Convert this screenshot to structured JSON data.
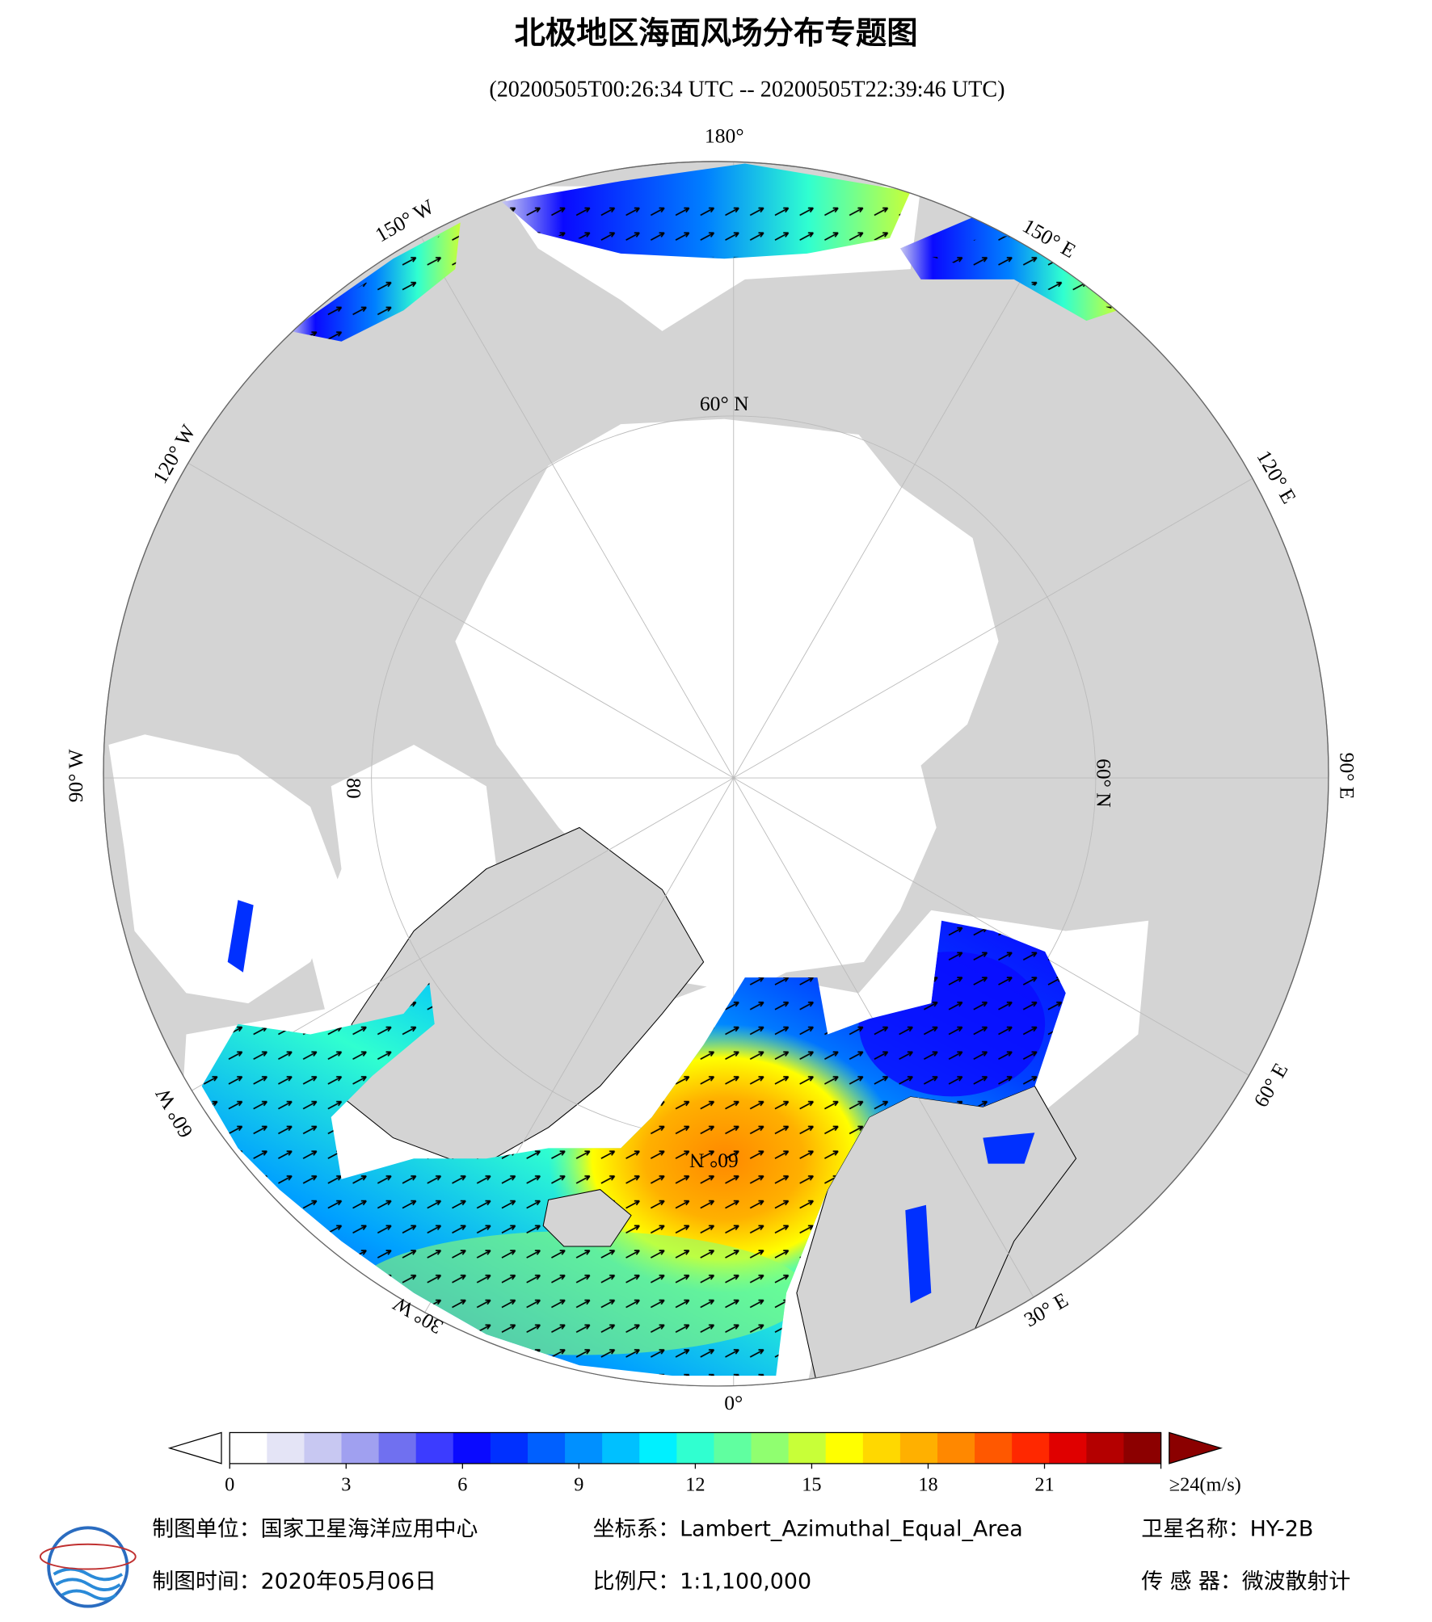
{
  "header": {
    "title": "北极地区海面风场分布专题图",
    "subtitle": "(20200505T00:26:34 UTC -- 20200505T22:39:46 UTC)"
  },
  "map": {
    "meridian_labels": [
      "180°",
      "150° E",
      "120° E",
      "90° E",
      "60° E",
      "30° E",
      "0°",
      "30° W",
      "60° W",
      "90° W",
      "120° W",
      "150° W"
    ],
    "parallel_labels": [
      "60° N",
      "60° N",
      "60° N",
      "80"
    ]
  },
  "colorbar": {
    "range": [
      0,
      24
    ],
    "ticks": [
      0,
      3,
      6,
      9,
      12,
      15,
      18,
      21,
      {
        "value": 24,
        "label": "≥24(m/s)"
      }
    ],
    "colors": [
      "#ffffff",
      "#e4e4f6",
      "#c8c8f2",
      "#a0a0f0",
      "#7070f0",
      "#3c3cff",
      "#0a0aff",
      "#0030ff",
      "#0060ff",
      "#0090ff",
      "#00c0ff",
      "#00f0ff",
      "#30ffd0",
      "#60ffa0",
      "#90ff70",
      "#c8ff38",
      "#ffff00",
      "#ffd800",
      "#ffb000",
      "#ff8800",
      "#ff5800",
      "#ff2800",
      "#e00000",
      "#b40000",
      "#8c0000"
    ],
    "under_color": "#ffffff",
    "over_color": "#8b0000"
  },
  "footer": {
    "unit": "制图单位：国家卫星海洋应用中心",
    "projection": "坐标系：Lambert_Azimuthal_Equal_Area",
    "satellite": "卫星名称：HY-2B",
    "date": "制图时间：2020年05月06日",
    "scale": "比例尺：1:1,100,000",
    "sensor": "传 感 器：微波散射计"
  }
}
